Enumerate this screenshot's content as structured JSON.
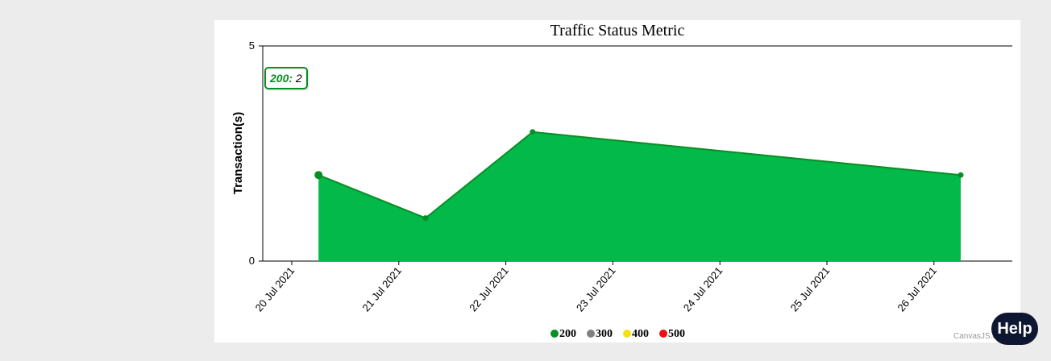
{
  "help": {
    "label": "Help"
  },
  "tooltip": {
    "series": "200:",
    "value": "2"
  },
  "credit": "CanvasJS.com",
  "colors": {
    "fill": "#03b94a",
    "line": "#078f23",
    "marker": "#078f23",
    "legend_200": "#078f23",
    "legend_300": "#808080",
    "legend_400": "#f5e20d",
    "legend_500": "#ee1111"
  },
  "chart_data": {
    "type": "area",
    "title": "Traffic Status Metric",
    "xlabel": "",
    "ylabel": "Transaction(s)",
    "ylim": [
      0,
      5
    ],
    "yticks": [
      "0",
      "5"
    ],
    "x_ticks": [
      "20 Jul 2021",
      "21 Jul 2021",
      "22 Jul 2021",
      "23 Jul 2021",
      "24 Jul 2021",
      "25 Jul 2021",
      "26 Jul 2021"
    ],
    "xlim": [
      "2021-07-20",
      "2021-07-26"
    ],
    "grid": false,
    "legend_position": "bottom",
    "series": [
      {
        "name": "200",
        "points": [
          {
            "x": "2021-07-20 06:00",
            "y": 2
          },
          {
            "x": "2021-07-21 06:00",
            "y": 1
          },
          {
            "x": "2021-07-22 06:00",
            "y": 3
          },
          {
            "x": "2021-07-26 06:00",
            "y": 2
          }
        ]
      },
      {
        "name": "300",
        "points": []
      },
      {
        "name": "400",
        "points": []
      },
      {
        "name": "500",
        "points": []
      }
    ]
  }
}
